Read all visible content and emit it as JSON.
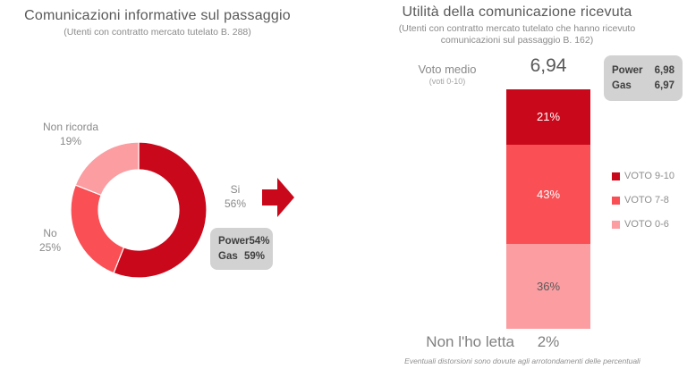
{
  "colors": {
    "accent_red": "#c9091b",
    "mid_red": "#f94f55",
    "pink": "#fb9da1",
    "callout_bg": "#d2d2d2"
  },
  "footer_note": "Eventuali distorsioni sono dovute agli arrotondamenti delle percentuali",
  "chart_data": [
    {
      "type": "pie",
      "donut": true,
      "title": "Comunicazioni informative sul passaggio",
      "subtitle": "(Utenti con contratto mercato tutelato B. 288)",
      "labels": [
        "Si",
        "No",
        "Non ricorda"
      ],
      "values": [
        56,
        25,
        19
      ],
      "value_labels": [
        "56%",
        "25%",
        "19%"
      ],
      "colors": [
        "#c9091b",
        "#f94f55",
        "#fb9da1"
      ],
      "start_angle": "top",
      "direction": "clockwise",
      "callout": {
        "rows": [
          {
            "label": "Power",
            "value": "54%"
          },
          {
            "label": "Gas",
            "value": "59%"
          }
        ]
      }
    },
    {
      "type": "bar",
      "stacked": true,
      "title": "Utilità della comunicazione ricevuta",
      "subtitle": "(Utenti con contratto mercato tutelato che hanno ricevuto comunicazioni sul passaggio B. 162)",
      "segments": [
        "VOTO 9-10",
        "VOTO 7-8",
        "VOTO 0-6"
      ],
      "values": [
        21,
        43,
        36
      ],
      "value_labels": [
        "21%",
        "43%",
        "36%"
      ],
      "colors": [
        "#c9091b",
        "#f94f55",
        "#fb9da1"
      ],
      "value_label_colors": [
        "#ffffff",
        "#ffffff",
        "#595959"
      ],
      "extra_category": {
        "label": "Non l'ho letta",
        "value": 2,
        "value_label": "2%"
      },
      "mean": {
        "label": "Voto medio",
        "scale": "(voti 0-10)",
        "value": "6,94"
      },
      "legend": [
        "VOTO 9-10",
        "VOTO 7-8",
        "VOTO 0-6"
      ],
      "legend_position": "right",
      "callout": {
        "rows": [
          {
            "label": "Power",
            "value": "6,98"
          },
          {
            "label": "Gas",
            "value": "6,97"
          }
        ]
      },
      "note": "Eventuali distorsioni sono dovute agli arrotondamenti delle percentuali"
    }
  ]
}
